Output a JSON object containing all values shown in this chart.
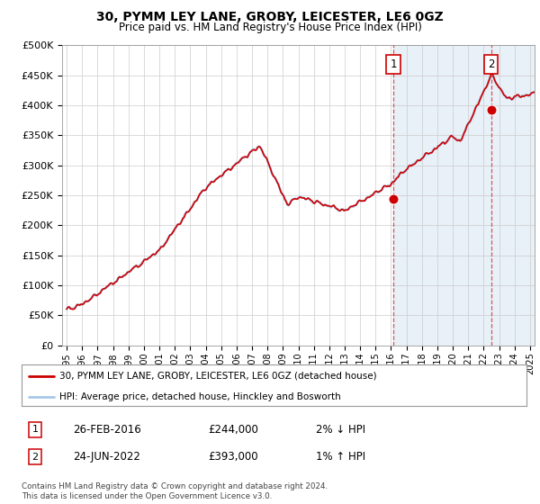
{
  "title": "30, PYMM LEY LANE, GROBY, LEICESTER, LE6 0GZ",
  "subtitle": "Price paid vs. HM Land Registry's House Price Index (HPI)",
  "ylabel_ticks": [
    "£0",
    "£50K",
    "£100K",
    "£150K",
    "£200K",
    "£250K",
    "£300K",
    "£350K",
    "£400K",
    "£450K",
    "£500K"
  ],
  "ytick_values": [
    0,
    50000,
    100000,
    150000,
    200000,
    250000,
    300000,
    350000,
    400000,
    450000,
    500000
  ],
  "xlim_start": 1994.7,
  "xlim_end": 2025.3,
  "ylim": [
    0,
    500000
  ],
  "hpi_color": "#a8c8e8",
  "price_color": "#cc0000",
  "marker1_date": 2016.15,
  "marker1_value": 244000,
  "marker2_date": 2022.48,
  "marker2_value": 393000,
  "vline1_x": 2016.15,
  "vline2_x": 2022.48,
  "legend_line1": "30, PYMM LEY LANE, GROBY, LEICESTER, LE6 0GZ (detached house)",
  "legend_line2": "HPI: Average price, detached house, Hinckley and Bosworth",
  "annotation1_num": "1",
  "annotation1_date": "26-FEB-2016",
  "annotation1_price": "£244,000",
  "annotation1_hpi": "2% ↓ HPI",
  "annotation2_num": "2",
  "annotation2_date": "24-JUN-2022",
  "annotation2_price": "£393,000",
  "annotation2_hpi": "1% ↑ HPI",
  "footnote": "Contains HM Land Registry data © Crown copyright and database right 2024.\nThis data is licensed under the Open Government Licence v3.0.",
  "background_color": "#ffffff",
  "plot_bg_color": "#ffffff",
  "grid_color": "#cccccc",
  "shade_color": "#ddeeff"
}
